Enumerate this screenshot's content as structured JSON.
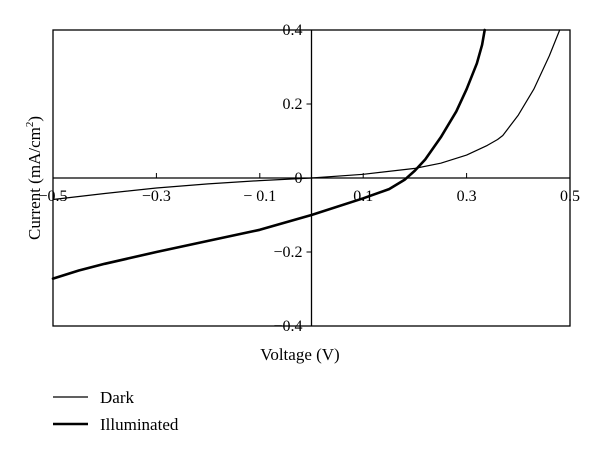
{
  "chart_data": {
    "type": "line",
    "title": "",
    "xlabel": "Voltage (V)",
    "ylabel_main": "Current (mA/cm",
    "ylabel_sup": "2",
    "ylabel_end": ")",
    "xlim": [
      -0.5,
      0.5
    ],
    "ylim": [
      -0.4,
      0.4
    ],
    "x_ticks": [
      -0.5,
      -0.3,
      -0.1,
      0.1,
      0.3,
      0.5
    ],
    "x_tick_labels": [
      "−0.5",
      "−0.3",
      "− 0.1",
      "0.1",
      "0.3",
      "0.5"
    ],
    "y_ticks": [
      0.4,
      0.2,
      0,
      -0.2,
      -0.4
    ],
    "y_tick_labels": [
      "0.4",
      "0.2",
      "0",
      "−0.2",
      "−0.4"
    ],
    "grid": false,
    "legend_position": "bottom-left",
    "series": [
      {
        "name": "Dark",
        "style": "thin",
        "x": [
          -0.5,
          -0.4,
          -0.3,
          -0.2,
          -0.1,
          0.0,
          0.1,
          0.2,
          0.25,
          0.3,
          0.34,
          0.36,
          0.37,
          0.4,
          0.43,
          0.46,
          0.48
        ],
        "y": [
          -0.058,
          -0.042,
          -0.027,
          -0.016,
          -0.007,
          0.0,
          0.01,
          0.026,
          0.04,
          0.062,
          0.088,
          0.104,
          0.115,
          0.17,
          0.24,
          0.33,
          0.4
        ]
      },
      {
        "name": "Illuminated",
        "style": "thick",
        "x": [
          -0.5,
          -0.45,
          -0.4,
          -0.3,
          -0.2,
          -0.1,
          0.0,
          0.1,
          0.15,
          0.18,
          0.2,
          0.22,
          0.25,
          0.28,
          0.3,
          0.32,
          0.33,
          0.335
        ],
        "y": [
          -0.272,
          -0.25,
          -0.232,
          -0.2,
          -0.17,
          -0.14,
          -0.1,
          -0.055,
          -0.03,
          -0.005,
          0.02,
          0.05,
          0.11,
          0.18,
          0.24,
          0.31,
          0.36,
          0.4
        ]
      }
    ]
  }
}
